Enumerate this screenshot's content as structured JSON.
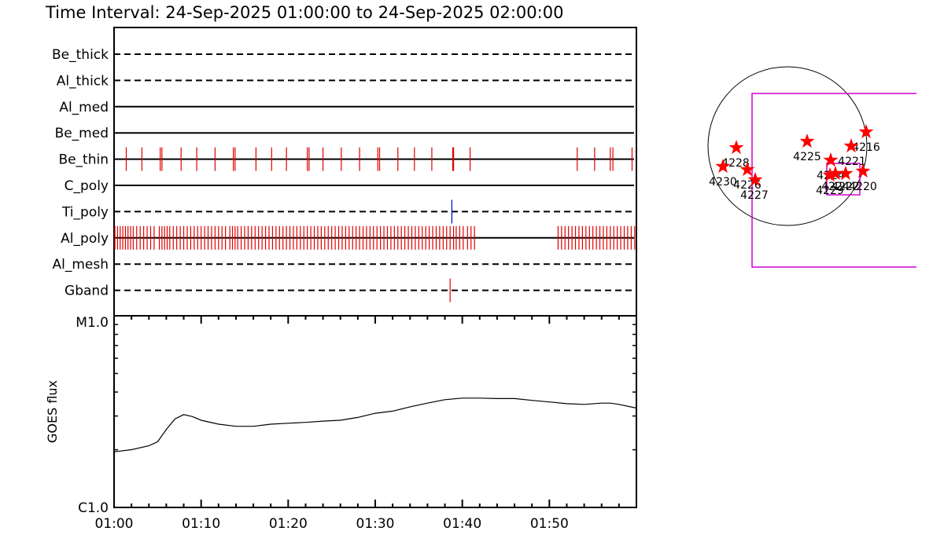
{
  "header": {
    "title": "Time Interval: 24-Sep-2025 01:00:00 to 24-Sep-2025 02:00:00"
  },
  "colors": {
    "axis": "#000000",
    "event_red": "#e00000",
    "event_blue": "#0000cc",
    "fov_box": "#d000d0",
    "star": "#ff0000"
  },
  "chart_data": [
    {
      "type": "event-timeline",
      "x_unit": "minutes after 01:00",
      "xlim": [
        0,
        60
      ],
      "rows": [
        {
          "label": "Be_thick",
          "style": "dashed",
          "events": []
        },
        {
          "label": "Al_thick",
          "style": "dashed",
          "events": []
        },
        {
          "label": "Al_med",
          "style": "solid",
          "events": []
        },
        {
          "label": "Be_med",
          "style": "solid",
          "events": []
        },
        {
          "label": "Be_thin",
          "style": "solid",
          "color": "red",
          "events": [
            1.4,
            3.2,
            5.3,
            5.5,
            7.7,
            9.5,
            11.6,
            13.7,
            13.9,
            16.3,
            18.1,
            19.8,
            22.2,
            22.4,
            24.0,
            26.1,
            28.2,
            30.3,
            30.5,
            32.6,
            34.5,
            36.5,
            38.9,
            39.0,
            40.9,
            53.2,
            55.2,
            57.0,
            57.3,
            59.5
          ]
        },
        {
          "label": "C_poly",
          "style": "solid",
          "events": []
        },
        {
          "label": "Ti_poly",
          "style": "dashed",
          "color": "blue",
          "events": [
            38.8
          ]
        },
        {
          "label": "Al_poly",
          "style": "solid",
          "color": "red",
          "events": [
            0.1,
            0.4,
            0.7,
            1.0,
            1.3,
            1.6,
            1.9,
            2.2,
            2.6,
            3.0,
            3.4,
            3.8,
            4.2,
            4.6,
            5.2,
            5.5,
            5.8,
            6.1,
            6.4,
            6.8,
            7.2,
            7.6,
            8.0,
            8.4,
            8.8,
            9.2,
            9.6,
            10.0,
            10.4,
            10.8,
            11.2,
            11.6,
            12.0,
            12.4,
            12.8,
            13.3,
            13.6,
            13.9,
            14.2,
            14.6,
            15.0,
            15.4,
            15.8,
            16.2,
            16.6,
            17.0,
            17.4,
            17.8,
            18.2,
            18.6,
            19.0,
            19.4,
            19.8,
            20.2,
            20.6,
            21.0,
            21.4,
            21.8,
            22.2,
            22.6,
            23.0,
            23.4,
            23.8,
            24.2,
            24.6,
            25.0,
            25.4,
            25.8,
            26.2,
            26.6,
            27.0,
            27.4,
            27.8,
            28.2,
            28.6,
            29.0,
            29.4,
            29.8,
            30.2,
            30.6,
            31.0,
            31.4,
            31.8,
            32.2,
            32.6,
            33.0,
            33.4,
            33.8,
            34.2,
            34.6,
            35.0,
            35.4,
            35.8,
            36.2,
            36.6,
            37.0,
            37.4,
            37.8,
            38.2,
            38.6,
            39.0,
            39.3,
            39.7,
            40.1,
            40.6,
            41.0,
            41.4,
            51.0,
            51.4,
            51.8,
            52.2,
            52.6,
            53.0,
            53.4,
            53.8,
            54.2,
            54.6,
            55.0,
            55.4,
            55.8,
            56.2,
            56.6,
            57.0,
            57.4,
            57.8,
            58.2,
            58.6,
            59.0,
            59.4,
            59.8
          ]
        },
        {
          "label": "Al_mesh",
          "style": "dashed",
          "events": []
        },
        {
          "label": "Gband",
          "style": "dashed",
          "color": "red",
          "events": [
            38.6
          ]
        }
      ]
    },
    {
      "type": "line",
      "ylabel": "GOES flux",
      "y_scale": "log",
      "ylim": [
        "C1.0",
        "M1.0"
      ],
      "ytick_labels": [
        "C1.0",
        "M1.0"
      ],
      "xtick_labels": [
        "01:00",
        "01:10",
        "01:20",
        "01:30",
        "01:40",
        "01:50"
      ],
      "xlim": [
        0,
        60
      ],
      "x": [
        0,
        2,
        4,
        5,
        6,
        7,
        8,
        9,
        10,
        12,
        14,
        16,
        18,
        20,
        22,
        24,
        26,
        28,
        30,
        32,
        34,
        36,
        38,
        40,
        42,
        44,
        46,
        48,
        50,
        52,
        54,
        56,
        57,
        58,
        60
      ],
      "y": [
        1.95,
        2.0,
        2.1,
        2.2,
        2.55,
        2.9,
        3.05,
        2.98,
        2.85,
        2.72,
        2.65,
        2.65,
        2.72,
        2.75,
        2.78,
        2.82,
        2.85,
        2.95,
        3.1,
        3.18,
        3.35,
        3.5,
        3.65,
        3.72,
        3.72,
        3.7,
        3.7,
        3.62,
        3.55,
        3.48,
        3.45,
        3.5,
        3.5,
        3.45,
        3.3
      ]
    },
    {
      "type": "scatter",
      "name": "fov-map",
      "points": [
        {
          "label": "4216"
        },
        {
          "label": "4221"
        },
        {
          "label": "4225"
        },
        {
          "label": "4228"
        },
        {
          "label": "4226"
        },
        {
          "label": "4230"
        },
        {
          "label": "4227"
        },
        {
          "label": "4224"
        },
        {
          "label": "4220"
        },
        {
          "label": "4229"
        },
        {
          "label": "4224"
        },
        {
          "label": "4222"
        }
      ]
    }
  ]
}
